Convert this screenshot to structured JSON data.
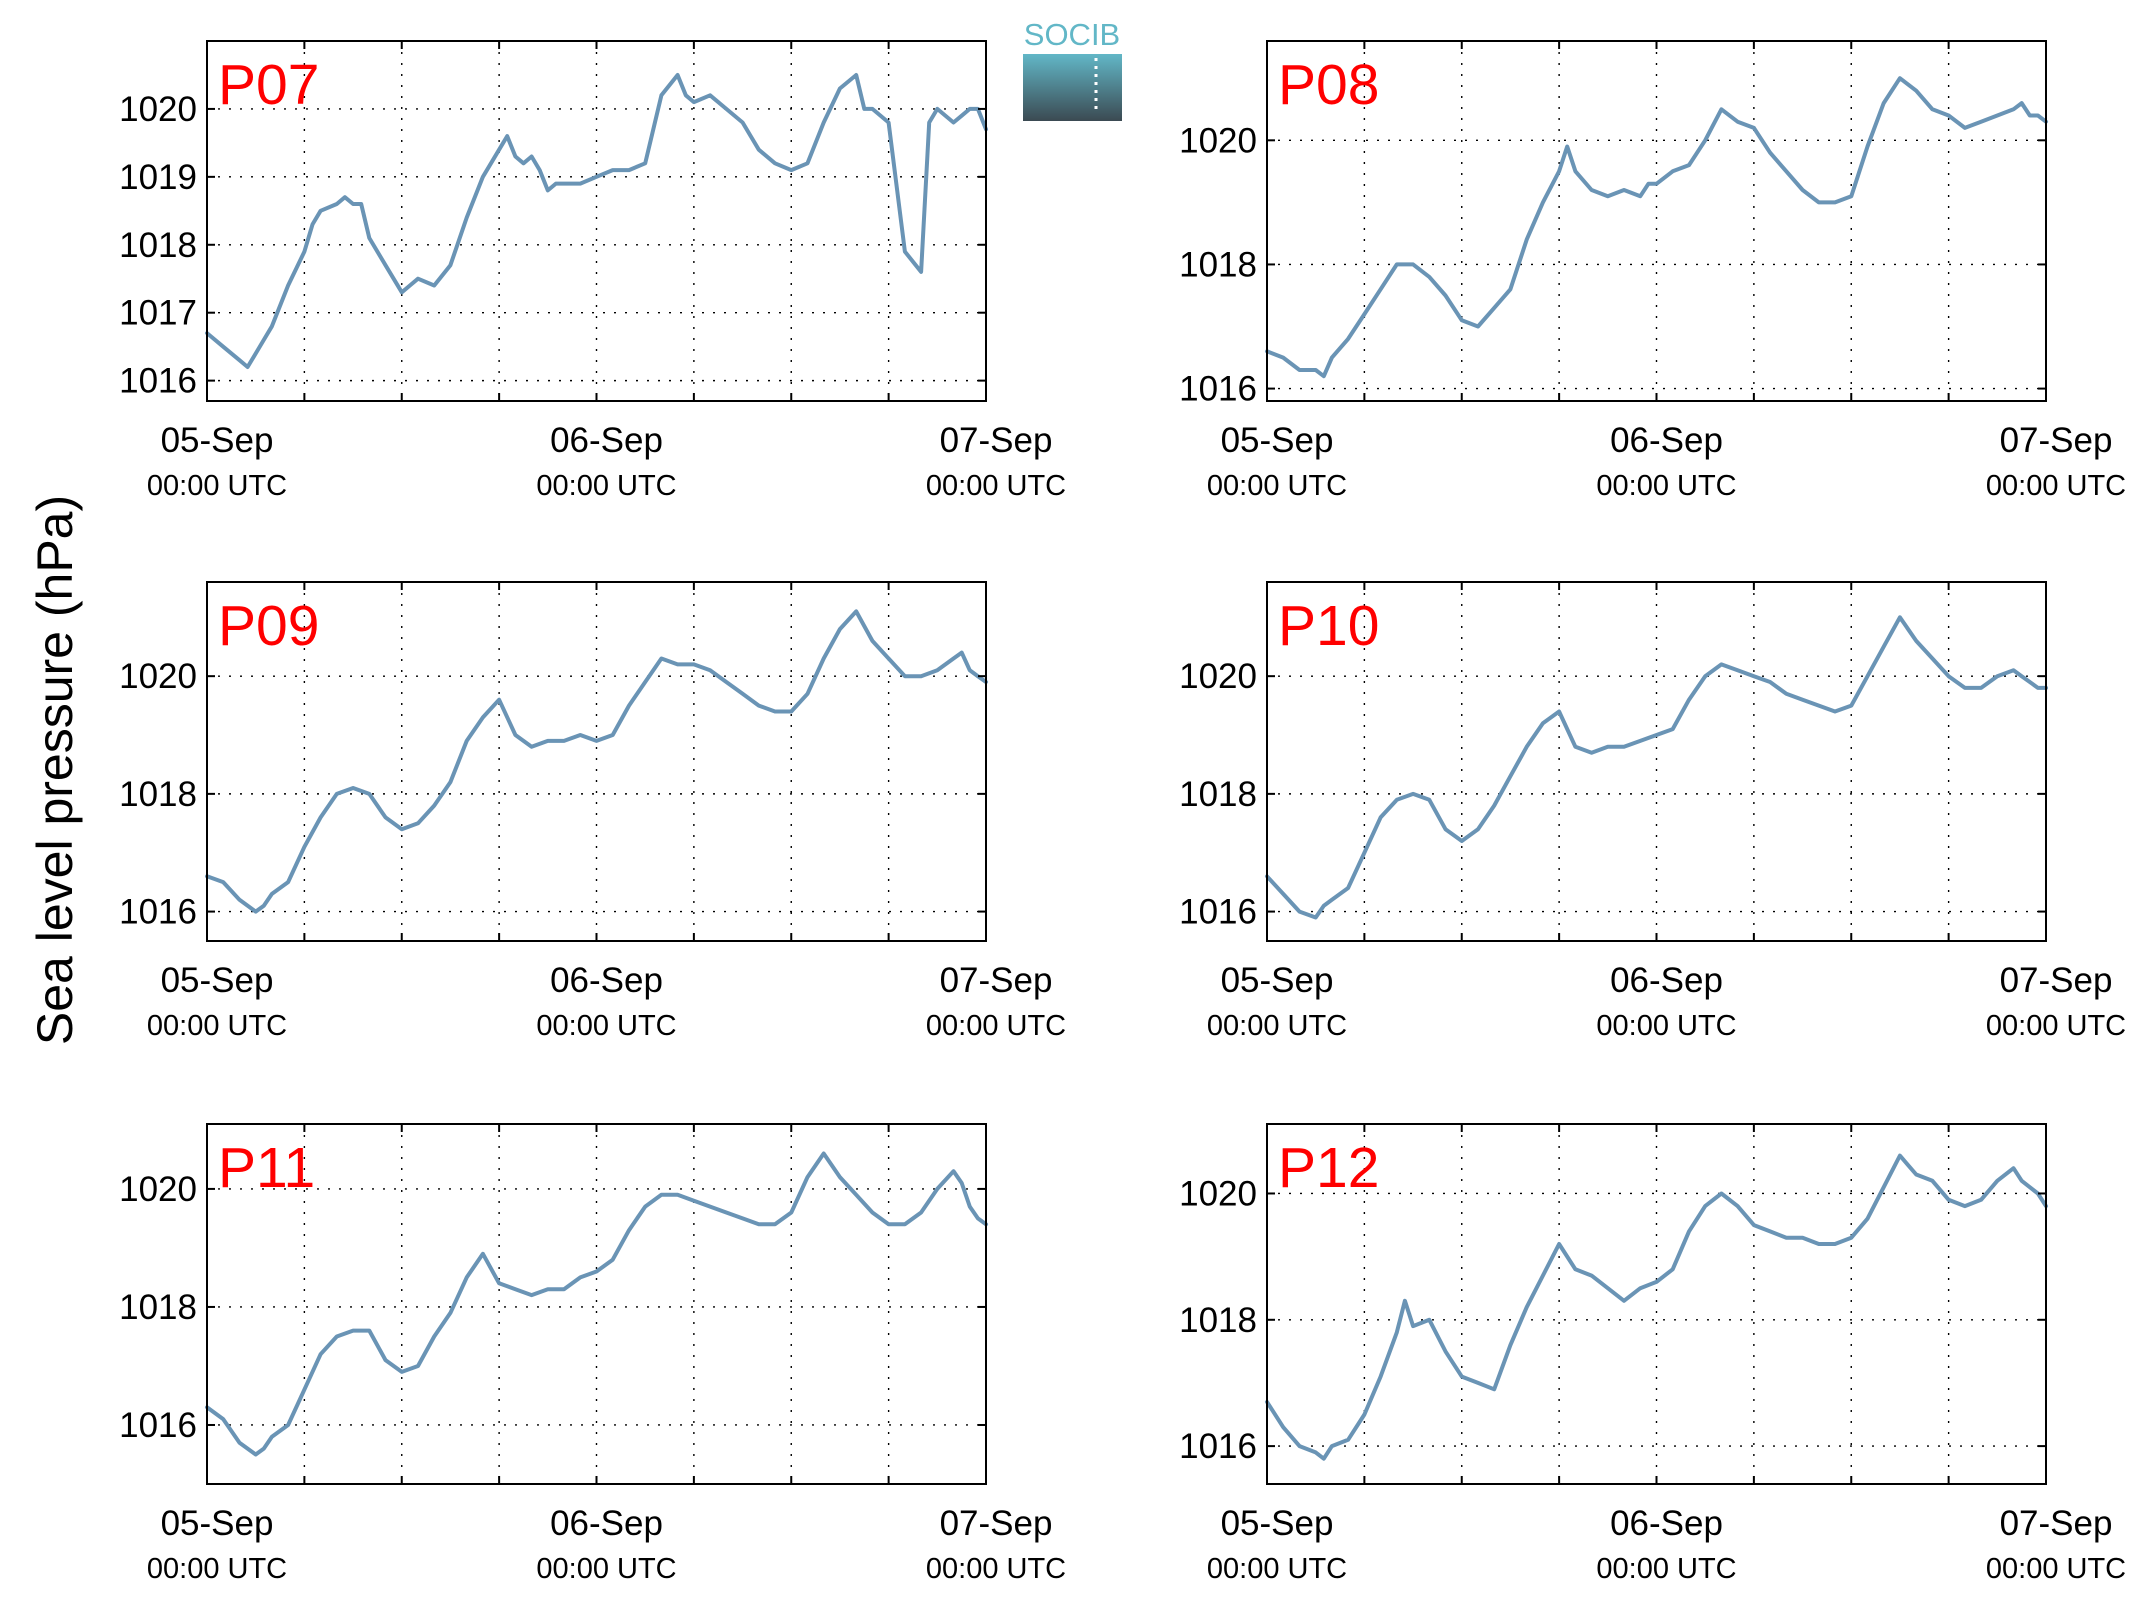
{
  "figure": {
    "ylabel": "Sea level pressure (hPa)",
    "logo_text": "SOCIB",
    "colors": {
      "line": "#6a94b5",
      "title": "#ff0000",
      "logo_top": "#62b7c7",
      "logo_bottom": "#3b4a52"
    }
  },
  "chart_data": [
    {
      "type": "line",
      "title": "P07",
      "x_range_hours": [
        0,
        48
      ],
      "ylim": [
        1015.7,
        1021.0
      ],
      "yticks": [
        1016,
        1017,
        1018,
        1019,
        1020
      ],
      "xticks": [
        {
          "hour": 0,
          "date": "05-Sep",
          "time": "00:00 UTC"
        },
        {
          "hour": 24,
          "date": "06-Sep",
          "time": "00:00 UTC"
        },
        {
          "hour": 48,
          "date": "07-Sep",
          "time": "00:00 UTC"
        }
      ],
      "grid": true,
      "series": [
        {
          "x": [
            0,
            1,
            2,
            2.5,
            3,
            3.5,
            4,
            5,
            6,
            6.5,
            7,
            8,
            8.5,
            9,
            9.5,
            10,
            11,
            12,
            12.5,
            13,
            14,
            15,
            16,
            17,
            18,
            18.5,
            19,
            19.5,
            20,
            20.5,
            21,
            21.5,
            22,
            23,
            24,
            25,
            26,
            27,
            28,
            29,
            29.5,
            30,
            31,
            32,
            33,
            33.5,
            34,
            35,
            36,
            37,
            38,
            39,
            40,
            40.5,
            41,
            42,
            43,
            44,
            44.5,
            45,
            46,
            46.5,
            47,
            47.5,
            48
          ],
          "y": [
            1016.7,
            1016.5,
            1016.3,
            1016.2,
            1016.4,
            1016.6,
            1016.8,
            1017.4,
            1017.9,
            1018.3,
            1018.5,
            1018.6,
            1018.7,
            1018.6,
            1018.6,
            1018.1,
            1017.7,
            1017.3,
            1017.4,
            1017.5,
            1017.4,
            1017.7,
            1018.4,
            1019.0,
            1019.4,
            1019.6,
            1019.3,
            1019.2,
            1019.3,
            1019.1,
            1018.8,
            1018.9,
            1018.9,
            1018.9,
            1019.0,
            1019.1,
            1019.1,
            1019.2,
            1020.2,
            1020.5,
            1020.2,
            1020.1,
            1020.2,
            1020.0,
            1019.8,
            1019.6,
            1019.4,
            1019.2,
            1019.1,
            1019.2,
            1019.8,
            1020.3,
            1020.5,
            1020.0,
            1020.0,
            1019.8,
            1017.9,
            1017.6,
            1019.8,
            1020.0,
            1019.8,
            1019.9,
            1020.0,
            1020.0,
            1019.7
          ]
        }
      ]
    },
    {
      "type": "line",
      "title": "P08",
      "x_range_hours": [
        0,
        48
      ],
      "ylim": [
        1015.8,
        1021.6
      ],
      "yticks": [
        1016,
        1018,
        1020
      ],
      "xticks": [
        {
          "hour": 0,
          "date": "05-Sep",
          "time": "00:00 UTC"
        },
        {
          "hour": 24,
          "date": "06-Sep",
          "time": "00:00 UTC"
        },
        {
          "hour": 48,
          "date": "07-Sep",
          "time": "00:00 UTC"
        }
      ],
      "grid": true,
      "series": [
        {
          "x": [
            0,
            1,
            2,
            3,
            3.5,
            4,
            5,
            6,
            7,
            8,
            9,
            10,
            11,
            12,
            13,
            14,
            15,
            16,
            17,
            18,
            18.5,
            19,
            20,
            21,
            22,
            23,
            23.5,
            24,
            25,
            26,
            27,
            28,
            29,
            30,
            31,
            32,
            33,
            34,
            35,
            36,
            37,
            38,
            39,
            40,
            41,
            42,
            43,
            44,
            45,
            46,
            46.5,
            47,
            47.5,
            48
          ],
          "y": [
            1016.6,
            1016.5,
            1016.3,
            1016.3,
            1016.2,
            1016.5,
            1016.8,
            1017.2,
            1017.6,
            1018.0,
            1018.0,
            1017.8,
            1017.5,
            1017.1,
            1017.0,
            1017.3,
            1017.6,
            1018.4,
            1019.0,
            1019.5,
            1019.9,
            1019.5,
            1019.2,
            1019.1,
            1019.2,
            1019.1,
            1019.3,
            1019.3,
            1019.5,
            1019.6,
            1020.0,
            1020.5,
            1020.3,
            1020.2,
            1019.8,
            1019.5,
            1019.2,
            1019.0,
            1019.0,
            1019.1,
            1019.9,
            1020.6,
            1021.0,
            1020.8,
            1020.5,
            1020.4,
            1020.2,
            1020.3,
            1020.4,
            1020.5,
            1020.6,
            1020.4,
            1020.4,
            1020.3
          ]
        }
      ]
    },
    {
      "type": "line",
      "title": "P09",
      "x_range_hours": [
        0,
        48
      ],
      "ylim": [
        1015.5,
        1021.6
      ],
      "yticks": [
        1016,
        1018,
        1020
      ],
      "xticks": [
        {
          "hour": 0,
          "date": "05-Sep",
          "time": "00:00 UTC"
        },
        {
          "hour": 24,
          "date": "06-Sep",
          "time": "00:00 UTC"
        },
        {
          "hour": 48,
          "date": "07-Sep",
          "time": "00:00 UTC"
        }
      ],
      "grid": true,
      "series": [
        {
          "x": [
            0,
            1,
            2,
            3,
            3.5,
            4,
            5,
            6,
            7,
            8,
            9,
            10,
            11,
            12,
            13,
            14,
            15,
            16,
            17,
            18,
            19,
            20,
            21,
            22,
            23,
            24,
            25,
            26,
            27,
            28,
            29,
            30,
            31,
            32,
            33,
            34,
            35,
            36,
            37,
            38,
            39,
            40,
            41,
            42,
            43,
            44,
            45,
            46,
            46.5,
            47,
            47.5,
            48
          ],
          "y": [
            1016.6,
            1016.5,
            1016.2,
            1016.0,
            1016.1,
            1016.3,
            1016.5,
            1017.1,
            1017.6,
            1018.0,
            1018.1,
            1018.0,
            1017.6,
            1017.4,
            1017.5,
            1017.8,
            1018.2,
            1018.9,
            1019.3,
            1019.6,
            1019.0,
            1018.8,
            1018.9,
            1018.9,
            1019.0,
            1018.9,
            1019.0,
            1019.5,
            1019.9,
            1020.3,
            1020.2,
            1020.2,
            1020.1,
            1019.9,
            1019.7,
            1019.5,
            1019.4,
            1019.4,
            1019.7,
            1020.3,
            1020.8,
            1021.1,
            1020.6,
            1020.3,
            1020.0,
            1020.0,
            1020.1,
            1020.3,
            1020.4,
            1020.1,
            1020.0,
            1019.9
          ]
        }
      ]
    },
    {
      "type": "line",
      "title": "P10",
      "x_range_hours": [
        0,
        48
      ],
      "ylim": [
        1015.5,
        1021.6
      ],
      "yticks": [
        1016,
        1018,
        1020
      ],
      "xticks": [
        {
          "hour": 0,
          "date": "05-Sep",
          "time": "00:00 UTC"
        },
        {
          "hour": 24,
          "date": "06-Sep",
          "time": "00:00 UTC"
        },
        {
          "hour": 48,
          "date": "07-Sep",
          "time": "00:00 UTC"
        }
      ],
      "grid": true,
      "series": [
        {
          "x": [
            0,
            1,
            2,
            3,
            3.5,
            4,
            5,
            6,
            7,
            8,
            9,
            10,
            11,
            12,
            13,
            14,
            15,
            16,
            17,
            18,
            19,
            20,
            21,
            22,
            23,
            24,
            25,
            26,
            27,
            28,
            29,
            30,
            31,
            32,
            33,
            34,
            35,
            36,
            37,
            38,
            39,
            40,
            41,
            42,
            43,
            44,
            45,
            46,
            46.5,
            47,
            47.5,
            48
          ],
          "y": [
            1016.6,
            1016.3,
            1016.0,
            1015.9,
            1016.1,
            1016.2,
            1016.4,
            1017.0,
            1017.6,
            1017.9,
            1018.0,
            1017.9,
            1017.4,
            1017.2,
            1017.4,
            1017.8,
            1018.3,
            1018.8,
            1019.2,
            1019.4,
            1018.8,
            1018.7,
            1018.8,
            1018.8,
            1018.9,
            1019.0,
            1019.1,
            1019.6,
            1020.0,
            1020.2,
            1020.1,
            1020.0,
            1019.9,
            1019.7,
            1019.6,
            1019.5,
            1019.4,
            1019.5,
            1020.0,
            1020.5,
            1021.0,
            1020.6,
            1020.3,
            1020.0,
            1019.8,
            1019.8,
            1020.0,
            1020.1,
            1020.0,
            1019.9,
            1019.8,
            1019.8
          ]
        }
      ]
    },
    {
      "type": "line",
      "title": "P11",
      "x_range_hours": [
        0,
        48
      ],
      "ylim": [
        1015.0,
        1021.1
      ],
      "yticks": [
        1016,
        1018,
        1020
      ],
      "xticks": [
        {
          "hour": 0,
          "date": "05-Sep",
          "time": "00:00 UTC"
        },
        {
          "hour": 24,
          "date": "06-Sep",
          "time": "00:00 UTC"
        },
        {
          "hour": 48,
          "date": "07-Sep",
          "time": "00:00 UTC"
        }
      ],
      "grid": true,
      "series": [
        {
          "x": [
            0,
            1,
            2,
            3,
            3.5,
            4,
            5,
            6,
            7,
            8,
            9,
            10,
            11,
            12,
            13,
            14,
            15,
            16,
            17,
            18,
            19,
            20,
            21,
            22,
            23,
            24,
            25,
            26,
            27,
            28,
            29,
            30,
            31,
            32,
            33,
            34,
            35,
            36,
            37,
            38,
            39,
            40,
            41,
            42,
            43,
            44,
            45,
            46,
            46.5,
            47,
            47.5,
            48
          ],
          "y": [
            1016.3,
            1016.1,
            1015.7,
            1015.5,
            1015.6,
            1015.8,
            1016.0,
            1016.6,
            1017.2,
            1017.5,
            1017.6,
            1017.6,
            1017.1,
            1016.9,
            1017.0,
            1017.5,
            1017.9,
            1018.5,
            1018.9,
            1018.4,
            1018.3,
            1018.2,
            1018.3,
            1018.3,
            1018.5,
            1018.6,
            1018.8,
            1019.3,
            1019.7,
            1019.9,
            1019.9,
            1019.8,
            1019.7,
            1019.6,
            1019.5,
            1019.4,
            1019.4,
            1019.6,
            1020.2,
            1020.6,
            1020.2,
            1019.9,
            1019.6,
            1019.4,
            1019.4,
            1019.6,
            1020.0,
            1020.3,
            1020.1,
            1019.7,
            1019.5,
            1019.4
          ]
        }
      ]
    },
    {
      "type": "line",
      "title": "P12",
      "x_range_hours": [
        0,
        48
      ],
      "ylim": [
        1015.4,
        1021.1
      ],
      "yticks": [
        1016,
        1018,
        1020
      ],
      "xticks": [
        {
          "hour": 0,
          "date": "05-Sep",
          "time": "00:00 UTC"
        },
        {
          "hour": 24,
          "date": "06-Sep",
          "time": "00:00 UTC"
        },
        {
          "hour": 48,
          "date": "07-Sep",
          "time": "00:00 UTC"
        }
      ],
      "grid": true,
      "series": [
        {
          "x": [
            0,
            1,
            2,
            3,
            3.5,
            4,
            5,
            6,
            7,
            8,
            8.5,
            9,
            10,
            11,
            12,
            13,
            14,
            15,
            16,
            17,
            18,
            19,
            20,
            21,
            22,
            23,
            24,
            25,
            26,
            27,
            28,
            29,
            30,
            31,
            32,
            33,
            34,
            35,
            36,
            37,
            38,
            39,
            40,
            41,
            42,
            43,
            44,
            45,
            46,
            46.5,
            47,
            47.5,
            48
          ],
          "y": [
            1016.7,
            1016.3,
            1016.0,
            1015.9,
            1015.8,
            1016.0,
            1016.1,
            1016.5,
            1017.1,
            1017.8,
            1018.3,
            1017.9,
            1018.0,
            1017.5,
            1017.1,
            1017.0,
            1016.9,
            1017.6,
            1018.2,
            1018.7,
            1019.2,
            1018.8,
            1018.7,
            1018.5,
            1018.3,
            1018.5,
            1018.6,
            1018.8,
            1019.4,
            1019.8,
            1020.0,
            1019.8,
            1019.5,
            1019.4,
            1019.3,
            1019.3,
            1019.2,
            1019.2,
            1019.3,
            1019.6,
            1020.1,
            1020.6,
            1020.3,
            1020.2,
            1019.9,
            1019.8,
            1019.9,
            1020.2,
            1020.4,
            1020.2,
            1020.1,
            1020.0,
            1019.8
          ]
        }
      ]
    }
  ]
}
